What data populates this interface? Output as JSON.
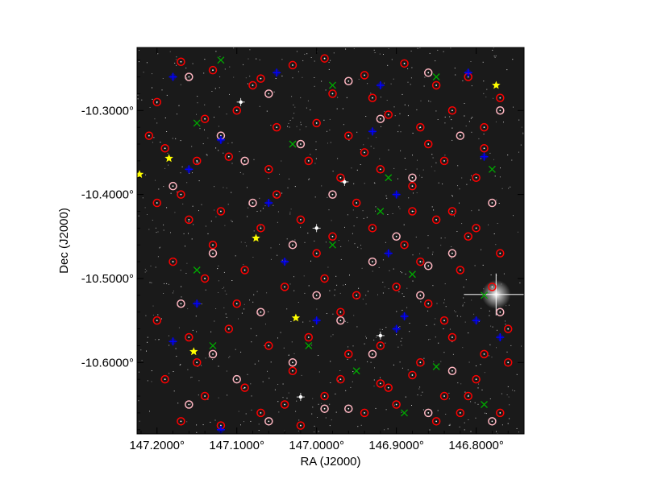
{
  "chart_data": {
    "type": "scatter",
    "title": "",
    "xlabel": "RA (J2000)",
    "ylabel": "Dec (J2000)",
    "xlim": [
      147.225,
      146.74
    ],
    "ylim": [
      -10.685,
      -10.225
    ],
    "x_ticks": [
      {
        "value": 147.2,
        "label": "147.2000°"
      },
      {
        "value": 147.1,
        "label": "147.1000°"
      },
      {
        "value": 147.0,
        "label": "147.0000°"
      },
      {
        "value": 146.9,
        "label": "146.9000°"
      },
      {
        "value": 146.8,
        "label": "146.8000°"
      }
    ],
    "y_ticks": [
      {
        "value": -10.3,
        "label": "-10.3000°"
      },
      {
        "value": -10.4,
        "label": "-10.4000°"
      },
      {
        "value": -10.5,
        "label": "-10.5000°"
      },
      {
        "value": -10.6,
        "label": "-10.6000°"
      }
    ],
    "background_color": "#1a1a1a",
    "series": [
      {
        "marker": "circle",
        "color": "#ff0000",
        "points": [
          [
            147.17,
            -10.242
          ],
          [
            147.13,
            -10.252
          ],
          [
            147.07,
            -10.262
          ],
          [
            147.03,
            -10.246
          ],
          [
            146.99,
            -10.238
          ],
          [
            146.94,
            -10.258
          ],
          [
            146.89,
            -10.244
          ],
          [
            146.85,
            -10.27
          ],
          [
            146.81,
            -10.26
          ],
          [
            146.77,
            -10.285
          ],
          [
            147.2,
            -10.29
          ],
          [
            147.14,
            -10.31
          ],
          [
            147.1,
            -10.3
          ],
          [
            147.05,
            -10.32
          ],
          [
            147.0,
            -10.315
          ],
          [
            146.96,
            -10.33
          ],
          [
            146.91,
            -10.305
          ],
          [
            146.87,
            -10.32
          ],
          [
            146.83,
            -10.3
          ],
          [
            146.79,
            -10.345
          ],
          [
            147.19,
            -10.345
          ],
          [
            147.15,
            -10.36
          ],
          [
            147.11,
            -10.355
          ],
          [
            147.06,
            -10.37
          ],
          [
            147.01,
            -10.36
          ],
          [
            146.97,
            -10.38
          ],
          [
            146.92,
            -10.37
          ],
          [
            146.88,
            -10.39
          ],
          [
            146.84,
            -10.36
          ],
          [
            146.8,
            -10.38
          ],
          [
            147.2,
            -10.41
          ],
          [
            147.16,
            -10.43
          ],
          [
            147.12,
            -10.42
          ],
          [
            147.07,
            -10.44
          ],
          [
            147.02,
            -10.43
          ],
          [
            146.98,
            -10.45
          ],
          [
            146.93,
            -10.44
          ],
          [
            146.89,
            -10.46
          ],
          [
            146.85,
            -10.43
          ],
          [
            146.81,
            -10.45
          ],
          [
            146.77,
            -10.47
          ],
          [
            147.18,
            -10.48
          ],
          [
            147.14,
            -10.5
          ],
          [
            147.09,
            -10.49
          ],
          [
            147.04,
            -10.51
          ],
          [
            146.99,
            -10.5
          ],
          [
            146.95,
            -10.52
          ],
          [
            146.9,
            -10.51
          ],
          [
            146.86,
            -10.53
          ],
          [
            146.82,
            -10.49
          ],
          [
            146.78,
            -10.51
          ],
          [
            147.2,
            -10.55
          ],
          [
            147.16,
            -10.57
          ],
          [
            147.11,
            -10.56
          ],
          [
            147.06,
            -10.58
          ],
          [
            147.01,
            -10.57
          ],
          [
            146.96,
            -10.59
          ],
          [
            146.92,
            -10.58
          ],
          [
            146.87,
            -10.6
          ],
          [
            146.83,
            -10.57
          ],
          [
            146.79,
            -10.59
          ],
          [
            146.76,
            -10.56
          ],
          [
            147.19,
            -10.62
          ],
          [
            147.14,
            -10.64
          ],
          [
            147.09,
            -10.63
          ],
          [
            147.04,
            -10.65
          ],
          [
            146.99,
            -10.64
          ],
          [
            146.94,
            -10.66
          ],
          [
            146.9,
            -10.65
          ],
          [
            146.85,
            -10.67
          ],
          [
            146.81,
            -10.64
          ],
          [
            146.77,
            -10.66
          ],
          [
            147.17,
            -10.67
          ],
          [
            147.12,
            -10.675
          ],
          [
            147.07,
            -10.66
          ],
          [
            147.02,
            -10.675
          ],
          [
            146.97,
            -10.62
          ],
          [
            146.92,
            -10.625
          ],
          [
            146.88,
            -10.615
          ],
          [
            146.84,
            -10.64
          ],
          [
            146.8,
            -10.62
          ],
          [
            147.21,
            -10.33
          ],
          [
            147.08,
            -10.27
          ],
          [
            146.98,
            -10.28
          ],
          [
            146.93,
            -10.285
          ],
          [
            146.86,
            -10.34
          ],
          [
            146.79,
            -10.32
          ],
          [
            147.05,
            -10.4
          ],
          [
            146.95,
            -10.41
          ],
          [
            146.83,
            -10.42
          ],
          [
            147.13,
            -10.46
          ],
          [
            147.0,
            -10.47
          ],
          [
            146.87,
            -10.48
          ],
          [
            146.8,
            -10.44
          ],
          [
            147.1,
            -10.53
          ],
          [
            146.97,
            -10.54
          ],
          [
            146.84,
            -10.55
          ],
          [
            146.76,
            -10.6
          ],
          [
            147.15,
            -10.6
          ],
          [
            147.03,
            -10.61
          ],
          [
            146.91,
            -10.63
          ],
          [
            146.82,
            -10.66
          ],
          [
            147.17,
            -10.4
          ],
          [
            146.94,
            -10.35
          ],
          [
            146.88,
            -10.42
          ]
        ]
      },
      {
        "marker": "circle",
        "color": "#ffb6c1",
        "points": [
          [
            147.16,
            -10.26
          ],
          [
            147.06,
            -10.28
          ],
          [
            146.96,
            -10.265
          ],
          [
            146.86,
            -10.255
          ],
          [
            146.77,
            -10.3
          ],
          [
            147.12,
            -10.33
          ],
          [
            147.02,
            -10.34
          ],
          [
            146.92,
            -10.31
          ],
          [
            146.82,
            -10.33
          ],
          [
            147.18,
            -10.39
          ],
          [
            147.08,
            -10.41
          ],
          [
            146.98,
            -10.4
          ],
          [
            146.88,
            -10.38
          ],
          [
            146.78,
            -10.41
          ],
          [
            147.13,
            -10.47
          ],
          [
            147.03,
            -10.46
          ],
          [
            146.93,
            -10.48
          ],
          [
            146.83,
            -10.47
          ],
          [
            147.17,
            -10.53
          ],
          [
            147.07,
            -10.54
          ],
          [
            146.97,
            -10.55
          ],
          [
            146.87,
            -10.52
          ],
          [
            146.77,
            -10.54
          ],
          [
            147.13,
            -10.59
          ],
          [
            147.03,
            -10.6
          ],
          [
            146.93,
            -10.59
          ],
          [
            146.83,
            -10.61
          ],
          [
            147.16,
            -10.65
          ],
          [
            147.06,
            -10.67
          ],
          [
            146.96,
            -10.655
          ],
          [
            146.86,
            -10.66
          ],
          [
            146.78,
            -10.67
          ],
          [
            147.09,
            -10.36
          ],
          [
            146.9,
            -10.45
          ],
          [
            147.0,
            -10.52
          ],
          [
            146.86,
            -10.485
          ],
          [
            147.1,
            -10.62
          ],
          [
            146.99,
            -10.655
          ]
        ]
      },
      {
        "marker": "plus",
        "color": "#0000ff",
        "points": [
          [
            147.18,
            -10.26
          ],
          [
            147.05,
            -10.255
          ],
          [
            146.92,
            -10.27
          ],
          [
            146.81,
            -10.255
          ],
          [
            147.12,
            -10.335
          ],
          [
            146.93,
            -10.325
          ],
          [
            146.79,
            -10.355
          ],
          [
            147.16,
            -10.37
          ],
          [
            147.06,
            -10.41
          ],
          [
            146.9,
            -10.4
          ],
          [
            146.91,
            -10.47
          ],
          [
            147.04,
            -10.48
          ],
          [
            147.15,
            -10.53
          ],
          [
            147.0,
            -10.55
          ],
          [
            146.89,
            -10.545
          ],
          [
            146.8,
            -10.55
          ],
          [
            147.18,
            -10.575
          ],
          [
            146.9,
            -10.56
          ],
          [
            146.77,
            -10.57
          ],
          [
            147.12,
            -10.68
          ]
        ]
      },
      {
        "marker": "x",
        "color": "#00aa00",
        "points": [
          [
            147.12,
            -10.24
          ],
          [
            146.98,
            -10.27
          ],
          [
            146.85,
            -10.26
          ],
          [
            147.15,
            -10.315
          ],
          [
            147.03,
            -10.34
          ],
          [
            146.91,
            -10.38
          ],
          [
            146.78,
            -10.37
          ],
          [
            146.92,
            -10.42
          ],
          [
            146.98,
            -10.46
          ],
          [
            147.15,
            -10.49
          ],
          [
            146.88,
            -10.495
          ],
          [
            146.79,
            -10.52
          ],
          [
            147.13,
            -10.58
          ],
          [
            147.01,
            -10.58
          ],
          [
            146.95,
            -10.61
          ],
          [
            146.85,
            -10.605
          ],
          [
            146.79,
            -10.65
          ],
          [
            146.89,
            -10.66
          ]
        ]
      },
      {
        "marker": "star",
        "color": "#ffff00",
        "points": [
          [
            146.775,
            -10.27
          ],
          [
            147.185,
            -10.357
          ],
          [
            147.222,
            -10.376
          ],
          [
            147.076,
            -10.452
          ],
          [
            147.026,
            -10.547
          ],
          [
            147.154,
            -10.587
          ]
        ]
      }
    ],
    "bright_stars": [
      {
        "x": 146.775,
        "y": -10.519,
        "size": "large"
      },
      {
        "x": 147.0,
        "y": -10.44,
        "size": "small"
      },
      {
        "x": 146.965,
        "y": -10.385,
        "size": "small"
      },
      {
        "x": 146.92,
        "y": -10.568,
        "size": "small"
      },
      {
        "x": 147.02,
        "y": -10.641,
        "size": "small"
      },
      {
        "x": 147.095,
        "y": -10.29,
        "size": "small"
      }
    ]
  }
}
